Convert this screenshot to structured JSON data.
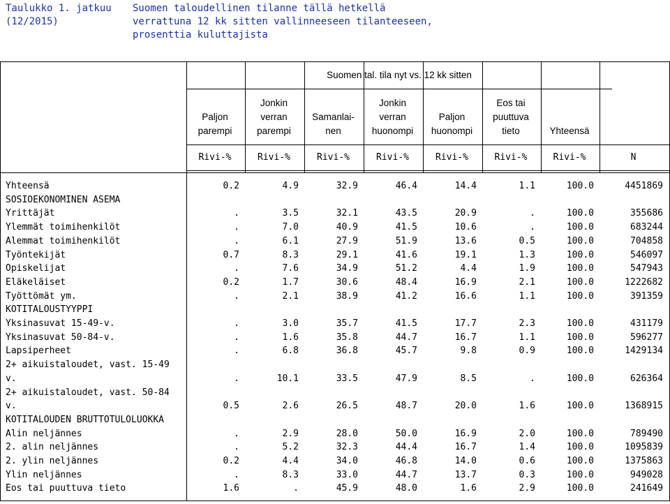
{
  "title": {
    "label_1": "Taulukko 1. jatkuu",
    "label_2": "(12/2015)",
    "text_1": "Suomen taloudellinen tilanne tällä hetkellä",
    "text_2": "verrattuna 12 kk sitten vallinneeseen tilanteeseen,",
    "text_3": "prosenttia kuluttajista"
  },
  "header": {
    "group": "Suomen tal. tila nyt vs. 12 kk sitten",
    "columns": [
      [
        "",
        "Paljon",
        "parempi"
      ],
      [
        "Jonkin",
        "verran",
        "parempi"
      ],
      [
        "",
        "Samanlai-",
        "nen"
      ],
      [
        "Jonkin",
        "verran",
        "huonompi"
      ],
      [
        "",
        "Paljon",
        "huonompi"
      ],
      [
        "Eos tai",
        "puuttuva",
        "tieto"
      ],
      [
        "",
        "",
        "Yhteensä"
      ],
      [
        "",
        "",
        ""
      ]
    ],
    "units": [
      "Rivi-%",
      "Rivi-%",
      "Rivi-%",
      "Rivi-%",
      "Rivi-%",
      "Rivi-%",
      "Rivi-%",
      "N"
    ]
  },
  "rows": [
    {
      "label": "Yhteensä",
      "v": [
        "0.2",
        "4.9",
        "32.9",
        "46.4",
        "14.4",
        "1.1",
        "100.0",
        "4451869"
      ]
    },
    {
      "label": "SOSIOEKONOMINEN ASEMA",
      "v": []
    },
    {
      "label": "Yrittäjät",
      "v": [
        ".",
        "3.5",
        "32.1",
        "43.5",
        "20.9",
        ".",
        "100.0",
        "355686"
      ]
    },
    {
      "label": "Ylemmät toimihenkilöt",
      "v": [
        ".",
        "7.0",
        "40.9",
        "41.5",
        "10.6",
        ".",
        "100.0",
        "683244"
      ]
    },
    {
      "label": "Alemmat toimihenkilöt",
      "v": [
        ".",
        "6.1",
        "27.9",
        "51.9",
        "13.6",
        "0.5",
        "100.0",
        "704858"
      ]
    },
    {
      "label": "Työntekijät",
      "v": [
        "0.7",
        "8.3",
        "29.1",
        "41.6",
        "19.1",
        "1.3",
        "100.0",
        "546097"
      ]
    },
    {
      "label": "Opiskelijat",
      "v": [
        ".",
        "7.6",
        "34.9",
        "51.2",
        "4.4",
        "1.9",
        "100.0",
        "547943"
      ]
    },
    {
      "label": "Eläkeläiset",
      "v": [
        "0.2",
        "1.7",
        "30.6",
        "48.4",
        "16.9",
        "2.1",
        "100.0",
        "1222682"
      ]
    },
    {
      "label": "Työttömät ym.",
      "v": [
        ".",
        "2.1",
        "38.9",
        "41.2",
        "16.6",
        "1.1",
        "100.0",
        "391359"
      ]
    },
    {
      "label": "KOTITALOUSTYYPPI",
      "v": []
    },
    {
      "label": "Yksinasuvat 15-49-v.",
      "v": [
        ".",
        "3.0",
        "35.7",
        "41.5",
        "17.7",
        "2.3",
        "100.0",
        "431179"
      ]
    },
    {
      "label": "Yksinasuvat 50-84-v.",
      "v": [
        ".",
        "1.6",
        "35.8",
        "44.7",
        "16.7",
        "1.1",
        "100.0",
        "596277"
      ]
    },
    {
      "label": "Lapsiperheet",
      "v": [
        ".",
        "6.8",
        "36.8",
        "45.7",
        "9.8",
        "0.9",
        "100.0",
        "1429134"
      ]
    },
    {
      "label": "2+ aikuistaloudet, vast. 15-49",
      "v": []
    },
    {
      "label": "v.",
      "v": [
        ".",
        "10.1",
        "33.5",
        "47.9",
        "8.5",
        ".",
        "100.0",
        "626364"
      ]
    },
    {
      "label": "2+ aikuistaloudet, vast. 50-84",
      "v": []
    },
    {
      "label": "v.",
      "v": [
        "0.5",
        "2.6",
        "26.5",
        "48.7",
        "20.0",
        "1.6",
        "100.0",
        "1368915"
      ]
    },
    {
      "label": "KOTITALOUDEN BRUTTOTULOLUOKKA",
      "v": []
    },
    {
      "label": "Alin neljännes",
      "v": [
        ".",
        "2.9",
        "28.0",
        "50.0",
        "16.9",
        "2.0",
        "100.0",
        "789490"
      ]
    },
    {
      "label": "2. alin neljännes",
      "v": [
        ".",
        "5.2",
        "32.3",
        "44.4",
        "16.7",
        "1.4",
        "100.0",
        "1095839"
      ]
    },
    {
      "label": "2. ylin neljännes",
      "v": [
        "0.2",
        "4.4",
        "34.0",
        "46.8",
        "14.0",
        "0.6",
        "100.0",
        "1375863"
      ]
    },
    {
      "label": "Ylin neljännes",
      "v": [
        ".",
        "8.3",
        "33.0",
        "44.7",
        "13.7",
        "0.3",
        "100.0",
        "949028"
      ]
    },
    {
      "label": "Eos tai puuttuva tieto",
      "v": [
        "1.6",
        ".",
        "45.9",
        "48.0",
        "1.6",
        "2.9",
        "100.0",
        "241649"
      ]
    }
  ]
}
